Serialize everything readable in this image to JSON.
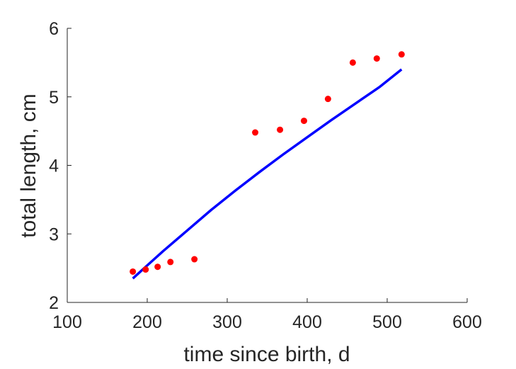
{
  "chart_data": {
    "type": "scatter",
    "xlabel": "time since birth, d",
    "ylabel": "total length, cm",
    "xlim": [
      100,
      600
    ],
    "ylim": [
      2,
      6
    ],
    "xticks": [
      100,
      200,
      300,
      400,
      500,
      600
    ],
    "yticks": [
      2,
      3,
      4,
      5,
      6
    ],
    "grid": false,
    "series": [
      {
        "kind": "scatter",
        "color": "#ff0000",
        "points": [
          [
            182,
            2.45
          ],
          [
            198,
            2.48
          ],
          [
            213,
            2.52
          ],
          [
            229,
            2.59
          ],
          [
            259,
            2.63
          ],
          [
            335,
            4.48
          ],
          [
            366,
            4.52
          ],
          [
            396,
            4.65
          ],
          [
            426,
            4.97
          ],
          [
            457,
            5.5
          ],
          [
            487,
            5.56
          ],
          [
            518,
            5.62
          ]
        ]
      },
      {
        "kind": "line",
        "color": "#0000ff",
        "points": [
          [
            182,
            2.35
          ],
          [
            200,
            2.54
          ],
          [
            220,
            2.75
          ],
          [
            250,
            3.05
          ],
          [
            280,
            3.35
          ],
          [
            310,
            3.63
          ],
          [
            340,
            3.9
          ],
          [
            370,
            4.16
          ],
          [
            400,
            4.41
          ],
          [
            430,
            4.66
          ],
          [
            460,
            4.9
          ],
          [
            490,
            5.14
          ],
          [
            518,
            5.4
          ]
        ]
      }
    ]
  }
}
